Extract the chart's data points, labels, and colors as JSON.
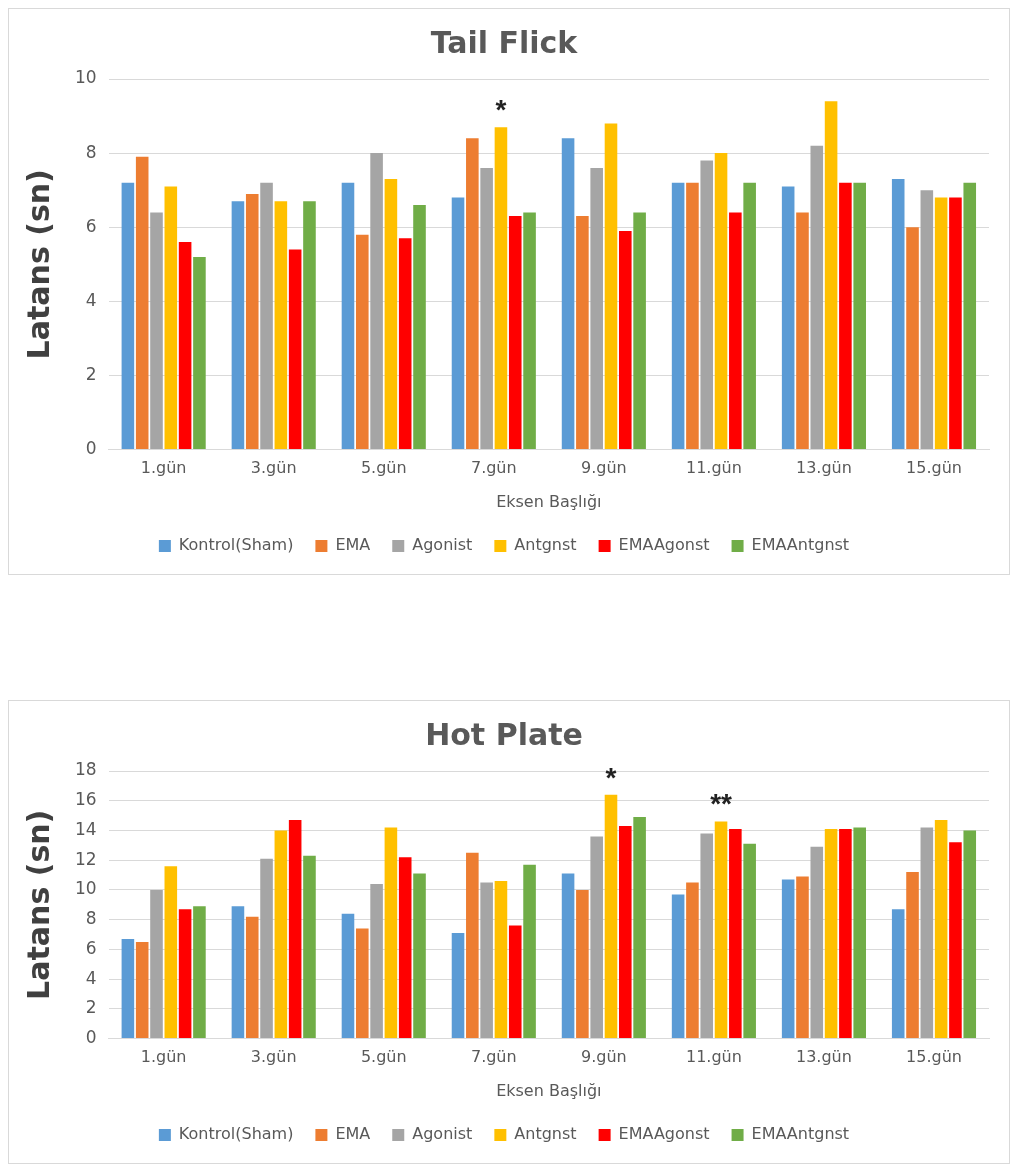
{
  "chart_data": [
    {
      "type": "bar",
      "title": "Tail Flick",
      "xlabel": "Eksen Başlığı",
      "ylabel": "Latans (sn)",
      "categories": [
        "1.gün",
        "3.gün",
        "5.gün",
        "7.gün",
        "9.gün",
        "11.gün",
        "13.gün",
        "15.gün"
      ],
      "series": [
        {
          "name": "Kontrol(Sham)",
          "color": "#5b9bd5",
          "values": [
            7.2,
            6.7,
            7.2,
            6.8,
            8.4,
            7.2,
            7.1,
            7.3
          ]
        },
        {
          "name": "EMA",
          "color": "#ed7d31",
          "values": [
            7.9,
            6.9,
            5.8,
            8.4,
            6.3,
            7.2,
            6.4,
            6.0
          ]
        },
        {
          "name": "Agonist",
          "color": "#a5a5a5",
          "values": [
            6.4,
            7.2,
            8.0,
            7.6,
            7.6,
            7.8,
            8.2,
            7.0
          ]
        },
        {
          "name": "Antgnst",
          "color": "#ffc000",
          "values": [
            7.1,
            6.7,
            7.3,
            8.7,
            8.8,
            8.0,
            9.4,
            6.8
          ]
        },
        {
          "name": "EMAAgonst",
          "color": "#ff0000",
          "values": [
            5.6,
            5.4,
            5.7,
            6.3,
            5.9,
            6.4,
            7.2,
            6.8
          ]
        },
        {
          "name": "EMAAntgnst",
          "color": "#70ad47",
          "values": [
            5.2,
            6.7,
            6.6,
            6.4,
            6.4,
            7.2,
            7.2,
            7.2
          ]
        }
      ],
      "ylim": [
        0,
        10
      ],
      "yticks": [
        0,
        2,
        4,
        6,
        8,
        10
      ],
      "grid": "y",
      "legend": "bottom",
      "annotations": [
        {
          "text": "*",
          "x": "7.gün",
          "y": 8.7
        }
      ]
    },
    {
      "type": "bar",
      "title": "Hot Plate",
      "xlabel": "Eksen Başlığı",
      "ylabel": "Latans (sn)",
      "categories": [
        "1.gün",
        "3.gün",
        "5.gün",
        "7.gün",
        "9.gün",
        "11.gün",
        "13.gün",
        "15.gün"
      ],
      "series": [
        {
          "name": "Kontrol(Sham)",
          "color": "#5b9bd5",
          "values": [
            6.7,
            8.9,
            8.4,
            7.1,
            11.1,
            9.7,
            10.7,
            8.7
          ]
        },
        {
          "name": "EMA",
          "color": "#ed7d31",
          "values": [
            6.5,
            8.2,
            7.4,
            12.5,
            10.0,
            10.5,
            10.9,
            11.2
          ]
        },
        {
          "name": "Agonist",
          "color": "#a5a5a5",
          "values": [
            10.0,
            12.1,
            10.4,
            10.5,
            13.6,
            13.8,
            12.9,
            14.2
          ]
        },
        {
          "name": "Antgnst",
          "color": "#ffc000",
          "values": [
            11.6,
            14.0,
            14.2,
            10.6,
            16.4,
            14.6,
            14.1,
            14.7
          ]
        },
        {
          "name": "EMAAgonst",
          "color": "#ff0000",
          "values": [
            8.7,
            14.7,
            12.2,
            7.6,
            14.3,
            14.1,
            14.1,
            13.2
          ]
        },
        {
          "name": "EMAAntgnst",
          "color": "#70ad47",
          "values": [
            8.9,
            12.3,
            11.1,
            11.7,
            14.9,
            13.1,
            14.2,
            14.0
          ]
        }
      ],
      "ylim": [
        0,
        18
      ],
      "yticks": [
        0,
        2,
        4,
        6,
        8,
        10,
        12,
        14,
        16,
        18
      ],
      "grid": "y",
      "legend": "bottom",
      "annotations": [
        {
          "text": "*",
          "x": "9.gün",
          "y": 16.4
        },
        {
          "text": "**",
          "x": "11.gün",
          "y": 14.6
        }
      ]
    }
  ]
}
